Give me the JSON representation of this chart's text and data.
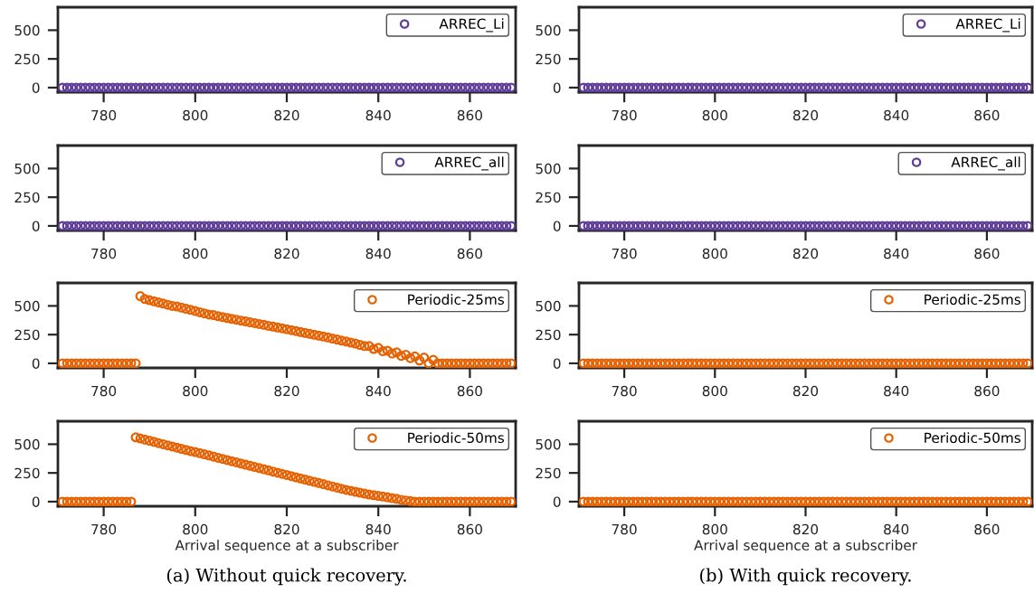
{
  "chart_data": [
    {
      "type": "scatter",
      "x": [
        771,
        772,
        773,
        774,
        775,
        776,
        777,
        778,
        779,
        780,
        781,
        782,
        783,
        784,
        785,
        786,
        787,
        788,
        789,
        790,
        791,
        792,
        793,
        794,
        795,
        796,
        797,
        798,
        799,
        800,
        801,
        802,
        803,
        804,
        805,
        806,
        807,
        808,
        809,
        810,
        811,
        812,
        813,
        814,
        815,
        816,
        817,
        818,
        819,
        820,
        821,
        822,
        823,
        824,
        825,
        826,
        827,
        828,
        829,
        830,
        831,
        832,
        833,
        834,
        835,
        836,
        837,
        838,
        839,
        840,
        841,
        842,
        843,
        844,
        845,
        846,
        847,
        848,
        849,
        850,
        851,
        852,
        853,
        854,
        855,
        856,
        857,
        858,
        859,
        860,
        861,
        862,
        863,
        864,
        865,
        866,
        867,
        868,
        869
      ],
      "xlim": [
        770,
        870
      ],
      "xticks": [
        780,
        800,
        820,
        840,
        860
      ],
      "ylim": [
        -40,
        700
      ],
      "yticks": [
        0,
        250,
        500
      ],
      "marker": "circle",
      "legend": "upper right",
      "series": [
        {
          "name": "ARREC_Li",
          "color": "#5e3c99",
          "values": [
            0,
            0,
            0,
            0,
            0,
            0,
            0,
            0,
            0,
            0,
            0,
            0,
            0,
            0,
            0,
            0,
            0,
            0,
            0,
            0,
            0,
            0,
            0,
            0,
            0,
            0,
            0,
            0,
            0,
            0,
            0,
            0,
            0,
            0,
            0,
            0,
            0,
            0,
            0,
            0,
            0,
            0,
            0,
            0,
            0,
            0,
            0,
            0,
            0,
            0,
            0,
            0,
            0,
            0,
            0,
            0,
            0,
            0,
            0,
            0,
            0,
            0,
            0,
            0,
            0,
            0,
            0,
            0,
            0,
            0,
            0,
            0,
            0,
            0,
            0,
            0,
            0,
            0,
            0,
            0,
            0,
            0,
            0,
            0,
            0,
            0,
            0,
            0,
            0,
            0,
            0,
            0,
            0,
            0,
            0,
            0,
            0,
            0,
            0
          ]
        }
      ]
    },
    {
      "type": "scatter",
      "x": [
        771,
        772,
        773,
        774,
        775,
        776,
        777,
        778,
        779,
        780,
        781,
        782,
        783,
        784,
        785,
        786,
        787,
        788,
        789,
        790,
        791,
        792,
        793,
        794,
        795,
        796,
        797,
        798,
        799,
        800,
        801,
        802,
        803,
        804,
        805,
        806,
        807,
        808,
        809,
        810,
        811,
        812,
        813,
        814,
        815,
        816,
        817,
        818,
        819,
        820,
        821,
        822,
        823,
        824,
        825,
        826,
        827,
        828,
        829,
        830,
        831,
        832,
        833,
        834,
        835,
        836,
        837,
        838,
        839,
        840,
        841,
        842,
        843,
        844,
        845,
        846,
        847,
        848,
        849,
        850,
        851,
        852,
        853,
        854,
        855,
        856,
        857,
        858,
        859,
        860,
        861,
        862,
        863,
        864,
        865,
        866,
        867,
        868,
        869
      ],
      "xlim": [
        770,
        870
      ],
      "xticks": [
        780,
        800,
        820,
        840,
        860
      ],
      "ylim": [
        -40,
        700
      ],
      "yticks": [
        0,
        250,
        500
      ],
      "marker": "circle",
      "legend": "upper right",
      "series": [
        {
          "name": "ARREC_all",
          "color": "#5e3c99",
          "values": [
            0,
            0,
            0,
            0,
            0,
            0,
            0,
            0,
            0,
            0,
            0,
            0,
            0,
            0,
            0,
            0,
            0,
            0,
            0,
            0,
            0,
            0,
            0,
            0,
            0,
            0,
            0,
            0,
            0,
            0,
            0,
            0,
            0,
            0,
            0,
            0,
            0,
            0,
            0,
            0,
            0,
            0,
            0,
            0,
            0,
            0,
            0,
            0,
            0,
            0,
            0,
            0,
            0,
            0,
            0,
            0,
            0,
            0,
            0,
            0,
            0,
            0,
            0,
            0,
            0,
            0,
            0,
            0,
            0,
            0,
            0,
            0,
            0,
            0,
            0,
            0,
            0,
            0,
            0,
            0,
            0,
            0,
            0,
            0,
            0,
            0,
            0,
            0,
            0,
            0,
            0,
            0,
            0,
            0,
            0,
            0,
            0,
            0,
            0
          ]
        }
      ]
    },
    {
      "type": "scatter",
      "x": [
        771,
        772,
        773,
        774,
        775,
        776,
        777,
        778,
        779,
        780,
        781,
        782,
        783,
        784,
        785,
        786,
        787,
        788,
        789,
        790,
        791,
        792,
        793,
        794,
        795,
        796,
        797,
        798,
        799,
        800,
        801,
        802,
        803,
        804,
        805,
        806,
        807,
        808,
        809,
        810,
        811,
        812,
        813,
        814,
        815,
        816,
        817,
        818,
        819,
        820,
        821,
        822,
        823,
        824,
        825,
        826,
        827,
        828,
        829,
        830,
        831,
        832,
        833,
        834,
        835,
        836,
        837,
        838,
        839,
        840,
        841,
        842,
        843,
        844,
        845,
        846,
        847,
        848,
        849,
        850,
        851,
        852,
        853,
        854,
        855,
        856,
        857,
        858,
        859,
        860,
        861,
        862,
        863,
        864,
        865,
        866,
        867,
        868,
        869
      ],
      "xlim": [
        770,
        870
      ],
      "xticks": [
        780,
        800,
        820,
        840,
        860
      ],
      "ylim": [
        -40,
        700
      ],
      "yticks": [
        0,
        250,
        500
      ],
      "marker": "circle",
      "legend": "upper right",
      "series": [
        {
          "name": "Periodic-25ms",
          "color": "#e66101",
          "values": [
            0,
            0,
            0,
            0,
            0,
            0,
            0,
            0,
            0,
            0,
            0,
            0,
            0,
            0,
            0,
            0,
            0,
            585,
            560,
            550,
            540,
            530,
            520,
            510,
            500,
            495,
            485,
            475,
            465,
            455,
            445,
            435,
            425,
            420,
            410,
            402,
            395,
            387,
            380,
            372,
            365,
            357,
            350,
            342,
            335,
            327,
            320,
            312,
            305,
            297,
            289,
            281,
            273,
            265,
            257,
            249,
            241,
            233,
            225,
            215,
            207,
            198,
            190,
            180,
            172,
            160,
            150,
            150,
            125,
            135,
            105,
            110,
            85,
            95,
            65,
            75,
            45,
            60,
            25,
            50,
            0,
            30,
            0,
            0,
            0,
            0,
            0,
            0,
            0,
            0,
            0,
            0,
            0,
            0,
            0,
            0,
            0,
            0,
            0
          ]
        }
      ]
    },
    {
      "type": "scatter",
      "x": [
        771,
        772,
        773,
        774,
        775,
        776,
        777,
        778,
        779,
        780,
        781,
        782,
        783,
        784,
        785,
        786,
        787,
        788,
        789,
        790,
        791,
        792,
        793,
        794,
        795,
        796,
        797,
        798,
        799,
        800,
        801,
        802,
        803,
        804,
        805,
        806,
        807,
        808,
        809,
        810,
        811,
        812,
        813,
        814,
        815,
        816,
        817,
        818,
        819,
        820,
        821,
        822,
        823,
        824,
        825,
        826,
        827,
        828,
        829,
        830,
        831,
        832,
        833,
        834,
        835,
        836,
        837,
        838,
        839,
        840,
        841,
        842,
        843,
        844,
        845,
        846,
        847,
        848,
        849,
        850,
        851,
        852,
        853,
        854,
        855,
        856,
        857,
        858,
        859,
        860,
        861,
        862,
        863,
        864,
        865,
        866,
        867,
        868,
        869
      ],
      "xlim": [
        770,
        870
      ],
      "xticks": [
        780,
        800,
        820,
        840,
        860
      ],
      "ylim": [
        -40,
        700
      ],
      "yticks": [
        0,
        250,
        500
      ],
      "marker": "circle",
      "legend": "upper right",
      "xlabel": "Arrival sequence at a subscriber",
      "annotations": [
        "(a) Without quick recovery."
      ],
      "series": [
        {
          "name": "Periodic-50ms",
          "color": "#e66101",
          "values": [
            0,
            0,
            0,
            0,
            0,
            0,
            0,
            0,
            0,
            0,
            0,
            0,
            0,
            0,
            0,
            0,
            560,
            550,
            540,
            530,
            520,
            510,
            500,
            490,
            480,
            470,
            460,
            450,
            440,
            432,
            422,
            412,
            402,
            392,
            382,
            372,
            362,
            352,
            342,
            332,
            322,
            312,
            302,
            292,
            282,
            272,
            262,
            252,
            242,
            232,
            222,
            212,
            202,
            192,
            182,
            172,
            162,
            152,
            142,
            132,
            122,
            112,
            102,
            94,
            86,
            78,
            70,
            62,
            56,
            50,
            44,
            38,
            30,
            24,
            16,
            10,
            5,
            0,
            0,
            0,
            0,
            0,
            0,
            0,
            0,
            0,
            0,
            0,
            0,
            0,
            0,
            0,
            0,
            0,
            0,
            0,
            0,
            0,
            0
          ]
        }
      ]
    },
    {
      "type": "scatter",
      "x": [
        771,
        772,
        773,
        774,
        775,
        776,
        777,
        778,
        779,
        780,
        781,
        782,
        783,
        784,
        785,
        786,
        787,
        788,
        789,
        790,
        791,
        792,
        793,
        794,
        795,
        796,
        797,
        798,
        799,
        800,
        801,
        802,
        803,
        804,
        805,
        806,
        807,
        808,
        809,
        810,
        811,
        812,
        813,
        814,
        815,
        816,
        817,
        818,
        819,
        820,
        821,
        822,
        823,
        824,
        825,
        826,
        827,
        828,
        829,
        830,
        831,
        832,
        833,
        834,
        835,
        836,
        837,
        838,
        839,
        840,
        841,
        842,
        843,
        844,
        845,
        846,
        847,
        848,
        849,
        850,
        851,
        852,
        853,
        854,
        855,
        856,
        857,
        858,
        859,
        860,
        861,
        862,
        863,
        864,
        865,
        866,
        867,
        868,
        869
      ],
      "xlim": [
        770,
        870
      ],
      "xticks": [
        780,
        800,
        820,
        840,
        860
      ],
      "ylim": [
        -40,
        700
      ],
      "yticks": [
        0,
        250,
        500
      ],
      "marker": "circle",
      "legend": "upper right",
      "series": [
        {
          "name": "ARREC_Li",
          "color": "#5e3c99",
          "values": [
            0,
            0,
            0,
            0,
            0,
            0,
            0,
            0,
            0,
            0,
            0,
            0,
            0,
            0,
            0,
            0,
            0,
            0,
            0,
            0,
            0,
            0,
            0,
            0,
            0,
            0,
            0,
            0,
            0,
            0,
            0,
            0,
            0,
            0,
            0,
            0,
            0,
            0,
            0,
            0,
            0,
            0,
            0,
            0,
            0,
            0,
            0,
            0,
            0,
            0,
            0,
            0,
            0,
            0,
            0,
            0,
            0,
            0,
            0,
            0,
            0,
            0,
            0,
            0,
            0,
            0,
            0,
            0,
            0,
            0,
            0,
            0,
            0,
            0,
            0,
            0,
            0,
            0,
            0,
            0,
            0,
            0,
            0,
            0,
            0,
            0,
            0,
            0,
            0,
            0,
            0,
            0,
            0,
            0,
            0,
            0,
            0,
            0,
            0
          ]
        }
      ]
    },
    {
      "type": "scatter",
      "x": [
        771,
        772,
        773,
        774,
        775,
        776,
        777,
        778,
        779,
        780,
        781,
        782,
        783,
        784,
        785,
        786,
        787,
        788,
        789,
        790,
        791,
        792,
        793,
        794,
        795,
        796,
        797,
        798,
        799,
        800,
        801,
        802,
        803,
        804,
        805,
        806,
        807,
        808,
        809,
        810,
        811,
        812,
        813,
        814,
        815,
        816,
        817,
        818,
        819,
        820,
        821,
        822,
        823,
        824,
        825,
        826,
        827,
        828,
        829,
        830,
        831,
        832,
        833,
        834,
        835,
        836,
        837,
        838,
        839,
        840,
        841,
        842,
        843,
        844,
        845,
        846,
        847,
        848,
        849,
        850,
        851,
        852,
        853,
        854,
        855,
        856,
        857,
        858,
        859,
        860,
        861,
        862,
        863,
        864,
        865,
        866,
        867,
        868,
        869
      ],
      "xlim": [
        770,
        870
      ],
      "xticks": [
        780,
        800,
        820,
        840,
        860
      ],
      "ylim": [
        -40,
        700
      ],
      "yticks": [
        0,
        250,
        500
      ],
      "marker": "circle",
      "legend": "upper right",
      "series": [
        {
          "name": "ARREC_all",
          "color": "#5e3c99",
          "values": [
            0,
            0,
            0,
            0,
            0,
            0,
            0,
            0,
            0,
            0,
            0,
            0,
            0,
            0,
            0,
            0,
            0,
            0,
            0,
            0,
            0,
            0,
            0,
            0,
            0,
            0,
            0,
            0,
            0,
            0,
            0,
            0,
            0,
            0,
            0,
            0,
            0,
            0,
            0,
            0,
            0,
            0,
            0,
            0,
            0,
            0,
            0,
            0,
            0,
            0,
            0,
            0,
            0,
            0,
            0,
            0,
            0,
            0,
            0,
            0,
            0,
            0,
            0,
            0,
            0,
            0,
            0,
            0,
            0,
            0,
            0,
            0,
            0,
            0,
            0,
            0,
            0,
            0,
            0,
            0,
            0,
            0,
            0,
            0,
            0,
            0,
            0,
            0,
            0,
            0,
            0,
            0,
            0,
            0,
            0,
            0,
            0,
            0,
            0
          ]
        }
      ]
    },
    {
      "type": "scatter",
      "x": [
        771,
        772,
        773,
        774,
        775,
        776,
        777,
        778,
        779,
        780,
        781,
        782,
        783,
        784,
        785,
        786,
        787,
        788,
        789,
        790,
        791,
        792,
        793,
        794,
        795,
        796,
        797,
        798,
        799,
        800,
        801,
        802,
        803,
        804,
        805,
        806,
        807,
        808,
        809,
        810,
        811,
        812,
        813,
        814,
        815,
        816,
        817,
        818,
        819,
        820,
        821,
        822,
        823,
        824,
        825,
        826,
        827,
        828,
        829,
        830,
        831,
        832,
        833,
        834,
        835,
        836,
        837,
        838,
        839,
        840,
        841,
        842,
        843,
        844,
        845,
        846,
        847,
        848,
        849,
        850,
        851,
        852,
        853,
        854,
        855,
        856,
        857,
        858,
        859,
        860,
        861,
        862,
        863,
        864,
        865,
        866,
        867,
        868,
        869
      ],
      "xlim": [
        770,
        870
      ],
      "xticks": [
        780,
        800,
        820,
        840,
        860
      ],
      "ylim": [
        -40,
        700
      ],
      "yticks": [
        0,
        250,
        500
      ],
      "marker": "circle",
      "legend": "upper right",
      "series": [
        {
          "name": "Periodic-25ms",
          "color": "#e66101",
          "values": [
            0,
            0,
            0,
            0,
            0,
            0,
            0,
            0,
            0,
            0,
            0,
            0,
            0,
            0,
            0,
            0,
            0,
            0,
            0,
            0,
            0,
            0,
            0,
            0,
            0,
            0,
            0,
            0,
            0,
            0,
            0,
            0,
            0,
            0,
            0,
            0,
            0,
            0,
            0,
            0,
            0,
            0,
            0,
            0,
            0,
            0,
            0,
            0,
            0,
            0,
            0,
            0,
            0,
            0,
            0,
            0,
            0,
            0,
            0,
            0,
            0,
            0,
            0,
            0,
            0,
            0,
            0,
            0,
            0,
            0,
            0,
            0,
            0,
            0,
            0,
            0,
            0,
            0,
            0,
            0,
            0,
            0,
            0,
            0,
            0,
            0,
            0,
            0,
            0,
            0,
            0,
            0,
            0,
            0,
            0,
            0,
            0,
            0,
            0
          ]
        }
      ]
    },
    {
      "type": "scatter",
      "x": [
        771,
        772,
        773,
        774,
        775,
        776,
        777,
        778,
        779,
        780,
        781,
        782,
        783,
        784,
        785,
        786,
        787,
        788,
        789,
        790,
        791,
        792,
        793,
        794,
        795,
        796,
        797,
        798,
        799,
        800,
        801,
        802,
        803,
        804,
        805,
        806,
        807,
        808,
        809,
        810,
        811,
        812,
        813,
        814,
        815,
        816,
        817,
        818,
        819,
        820,
        821,
        822,
        823,
        824,
        825,
        826,
        827,
        828,
        829,
        830,
        831,
        832,
        833,
        834,
        835,
        836,
        837,
        838,
        839,
        840,
        841,
        842,
        843,
        844,
        845,
        846,
        847,
        848,
        849,
        850,
        851,
        852,
        853,
        854,
        855,
        856,
        857,
        858,
        859,
        860,
        861,
        862,
        863,
        864,
        865,
        866,
        867,
        868,
        869
      ],
      "xlim": [
        770,
        870
      ],
      "xticks": [
        780,
        800,
        820,
        840,
        860
      ],
      "ylim": [
        -40,
        700
      ],
      "yticks": [
        0,
        250,
        500
      ],
      "marker": "circle",
      "legend": "upper right",
      "xlabel": "Arrival sequence at a subscriber",
      "annotations": [
        "(b) With quick recovery."
      ],
      "series": [
        {
          "name": "Periodic-50ms",
          "color": "#e66101",
          "values": [
            0,
            0,
            0,
            0,
            0,
            0,
            0,
            0,
            0,
            0,
            0,
            0,
            0,
            0,
            0,
            0,
            0,
            0,
            0,
            0,
            0,
            0,
            0,
            0,
            0,
            0,
            0,
            0,
            0,
            0,
            0,
            0,
            0,
            0,
            0,
            0,
            0,
            0,
            0,
            0,
            0,
            0,
            0,
            0,
            0,
            0,
            0,
            0,
            0,
            0,
            0,
            0,
            0,
            0,
            0,
            0,
            0,
            0,
            0,
            0,
            0,
            0,
            0,
            0,
            0,
            0,
            0,
            0,
            0,
            0,
            0,
            0,
            0,
            0,
            0,
            0,
            0,
            0,
            0,
            0,
            0,
            0,
            0,
            0,
            0,
            0,
            0,
            0,
            0,
            0,
            0,
            0,
            0,
            0,
            0,
            0,
            0,
            0,
            0
          ]
        }
      ]
    }
  ]
}
